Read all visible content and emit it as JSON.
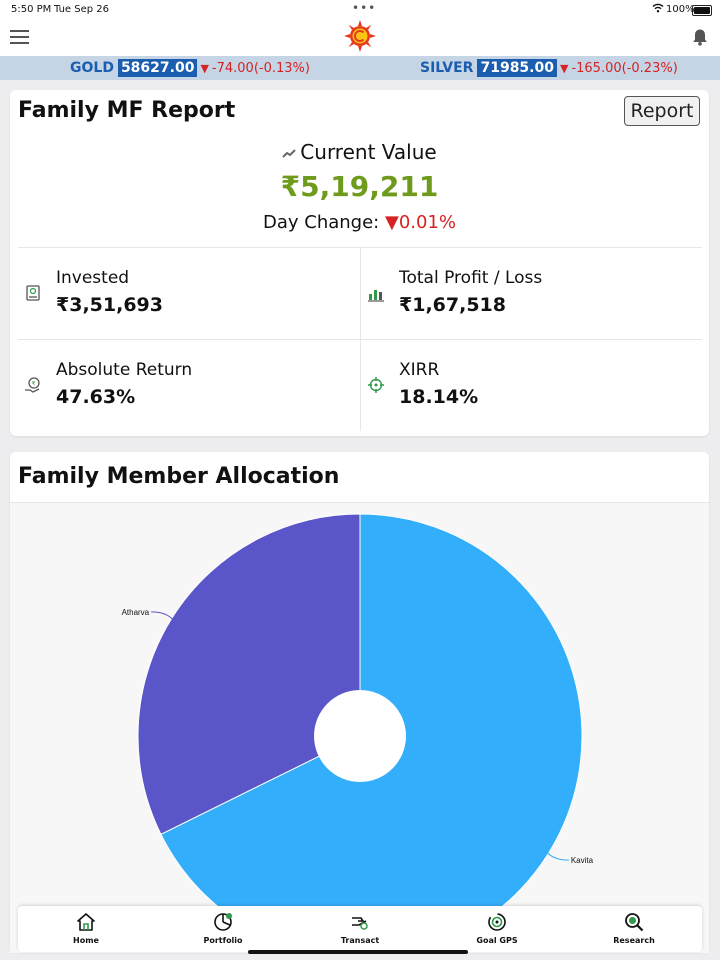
{
  "status_bar": {
    "time": "5:50 PM",
    "date": "Tue Sep 26",
    "battery": "100%"
  },
  "header": {
    "logo_icon": "logo-sun-icon",
    "menu_icon": "hamburger-menu-icon",
    "notification_icon": "bell-icon"
  },
  "ticker": {
    "gold": {
      "name": "GOLD",
      "price": "58627.00",
      "change": "-74.00(-0.13%)"
    },
    "silver": {
      "name": "SILVER",
      "price": "71985.00",
      "change": "-165.00(-0.23%)"
    }
  },
  "report": {
    "title": "Family MF Report",
    "report_button": "Report",
    "current_value_label": "Current Value",
    "current_value": "₹5,19,211",
    "day_change_label": "Day Change:",
    "day_change_value": "0.01%",
    "stats": {
      "invested": {
        "label": "Invested",
        "value": "₹3,51,693"
      },
      "profit_loss": {
        "label": "Total Profit / Loss",
        "value": "₹1,67,518"
      },
      "absolute_return": {
        "label": "Absolute Return",
        "value": "47.63%"
      },
      "xirr": {
        "label": "XIRR",
        "value": "18.14%"
      }
    }
  },
  "allocation": {
    "title": "Family Member Allocation"
  },
  "chart_data": {
    "type": "pie",
    "labels": [
      "Kavita",
      "Atharva"
    ],
    "values": [
      67.7,
      32.3
    ],
    "colors": [
      "#33aefa",
      "#5a55c8"
    ]
  },
  "tabs": [
    {
      "label": "Home",
      "icon": "home-icon"
    },
    {
      "label": "Portfolio",
      "icon": "portfolio-pie-icon"
    },
    {
      "label": "Transact",
      "icon": "transact-hand-icon"
    },
    {
      "label": "Goal GPS",
      "icon": "goal-gps-icon"
    },
    {
      "label": "Research",
      "icon": "research-magnifier-icon"
    }
  ],
  "colors": {
    "accent_blue": "#1b5dae",
    "positive_green": "#6e9b1c",
    "negative_red": "#d62222",
    "ticker_bg": "#c6d5e6"
  }
}
